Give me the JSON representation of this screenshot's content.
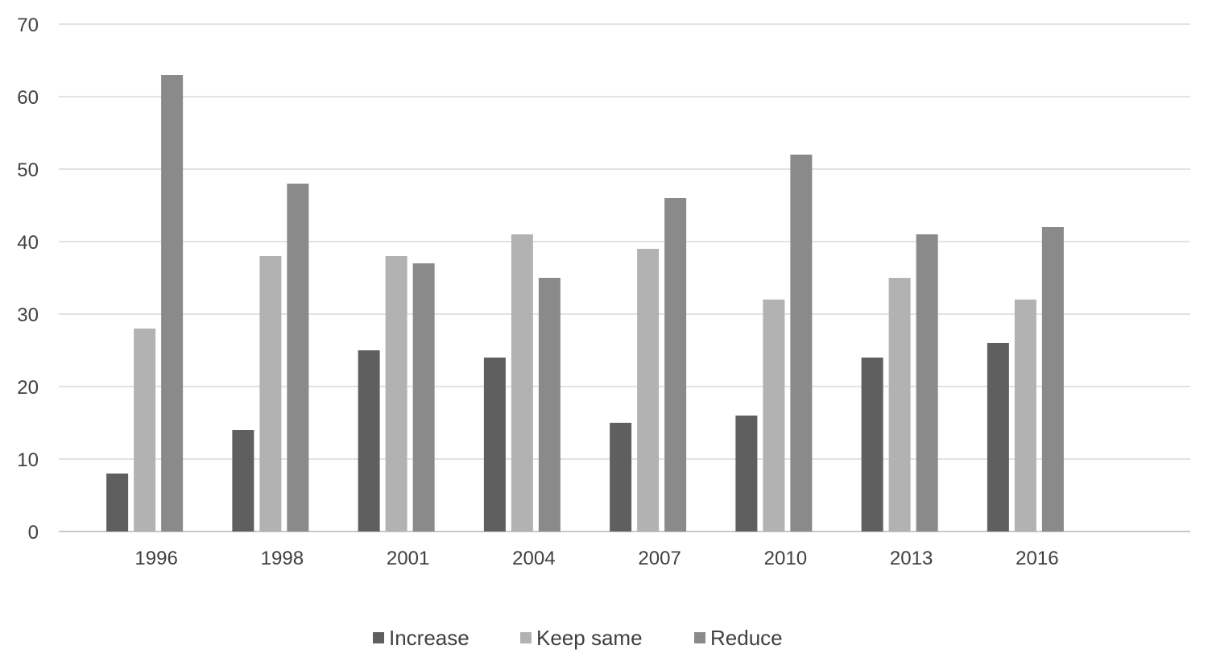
{
  "chart_data": {
    "type": "bar",
    "categories": [
      "1996",
      "1998",
      "2001",
      "2004",
      "2007",
      "2010",
      "2013",
      "2016"
    ],
    "series": [
      {
        "name": "Increase",
        "color": "#5f5f5f",
        "values": [
          8,
          14,
          25,
          24,
          15,
          16,
          24,
          26
        ]
      },
      {
        "name": "Keep same",
        "color": "#b2b2b2",
        "values": [
          28,
          38,
          38,
          41,
          39,
          32,
          35,
          32
        ]
      },
      {
        "name": "Reduce",
        "color": "#8a8a8a",
        "values": [
          63,
          48,
          37,
          35,
          46,
          52,
          41,
          42
        ]
      }
    ],
    "yticks": [
      "0",
      "10",
      "20",
      "30",
      "40",
      "50",
      "60",
      "70"
    ],
    "ylim": [
      0,
      70
    ],
    "title": "",
    "xlabel": "",
    "ylabel": "",
    "grid": true,
    "legend_position": "bottom-center"
  }
}
